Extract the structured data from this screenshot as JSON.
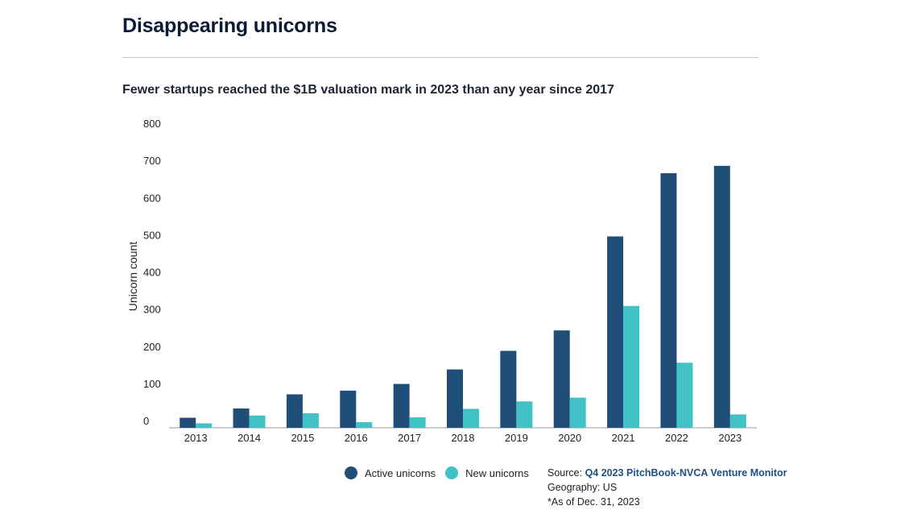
{
  "header": {
    "title": "Disappearing unicorns",
    "subtitle": "Fewer startups reached the $1B valuation mark in 2023 than any year since 2017"
  },
  "chart_data": {
    "type": "bar",
    "categories": [
      "2013",
      "2014",
      "2015",
      "2016",
      "2017",
      "2018",
      "2019",
      "2020",
      "2021",
      "2022",
      "2023"
    ],
    "series": [
      {
        "name": "Active unicorns",
        "color": "#1f4e79",
        "values": [
          27,
          52,
          90,
          100,
          118,
          157,
          207,
          262,
          515,
          685,
          705
        ]
      },
      {
        "name": "New unicorns",
        "color": "#41c2c7",
        "values": [
          12,
          33,
          39,
          15,
          28,
          51,
          71,
          81,
          328,
          175,
          36
        ]
      }
    ],
    "title": "Fewer startups reached the $1B valuation mark in 2023 than any year since 2017",
    "xlabel": "",
    "ylabel": "Unicorn count",
    "ylim": [
      0,
      800
    ],
    "yticks": [
      "800",
      "700",
      "600",
      "500",
      "400",
      "300",
      "200",
      "100",
      "0"
    ],
    "grid": false,
    "legend_position": "bottom"
  },
  "legend": {
    "active_label": "Active unicorns",
    "active_color": "#1f4e79",
    "new_label": "New unicorns",
    "new_color": "#41c2c7"
  },
  "source": {
    "prefix": "Source: ",
    "link_text": "Q4 2023 PitchBook-NVCA Venture Monitor",
    "geography": "Geography: US",
    "as_of": "*As of Dec. 31, 2023"
  }
}
